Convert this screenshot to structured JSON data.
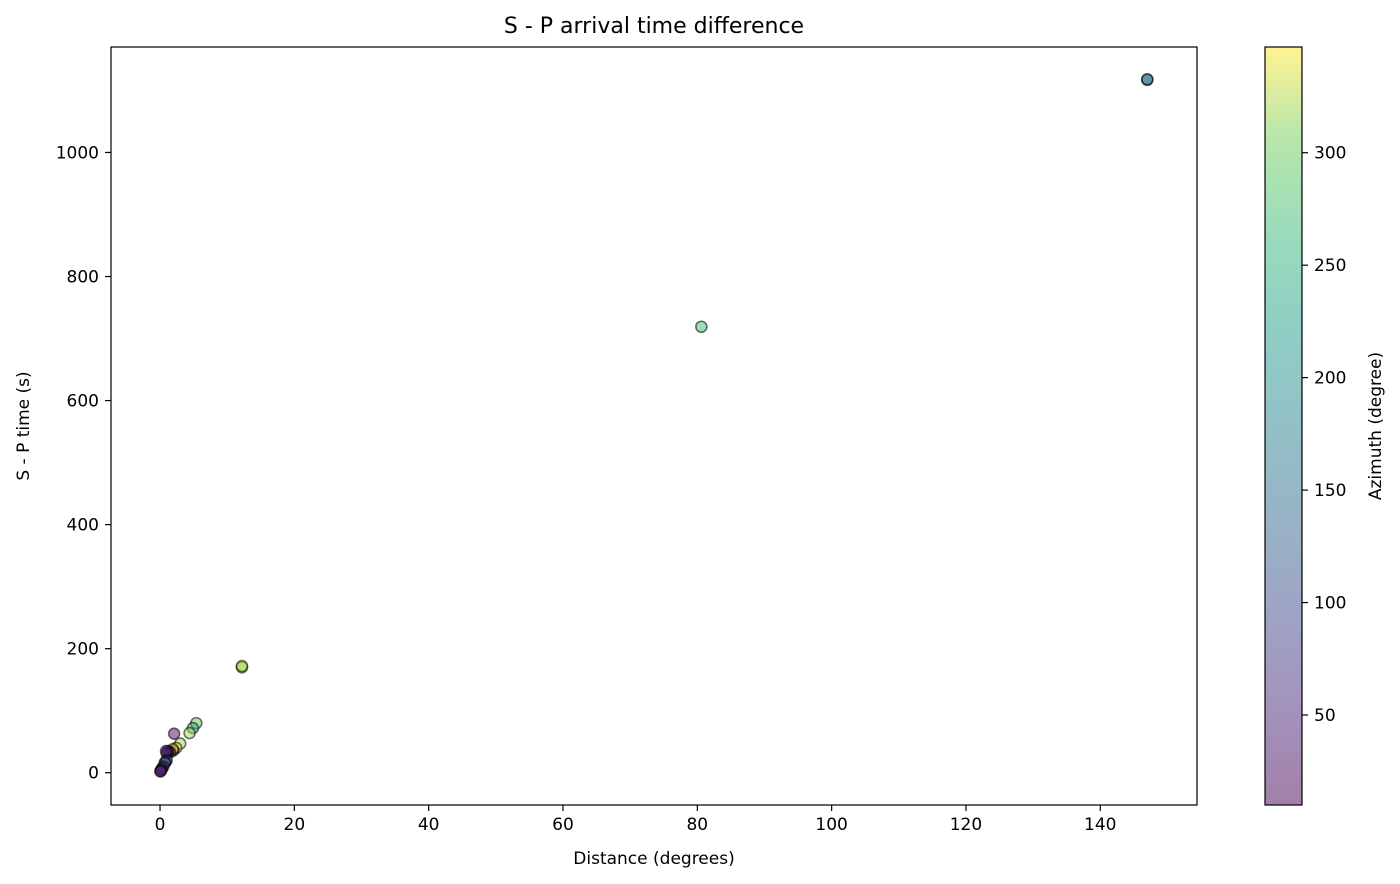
{
  "chart_data": {
    "type": "scatter",
    "title": "S - P arrival time difference",
    "xlabel": "Distance (degrees)",
    "ylabel": "S - P time (s)",
    "xlim": [
      -7.3,
      154.4
    ],
    "ylim": [
      -52,
      1170
    ],
    "xticks": [
      0,
      20,
      40,
      60,
      80,
      100,
      120,
      140
    ],
    "yticks": [
      0,
      200,
      400,
      600,
      800,
      1000
    ],
    "grid": false,
    "legend": "none",
    "colorbar": {
      "label": "Azimuth (degree)",
      "colormap": "viridis",
      "alpha": 0.5,
      "range": [
        10,
        347
      ],
      "ticks": [
        50,
        100,
        150,
        200,
        250,
        300
      ]
    },
    "points": [
      {
        "x": 147.0,
        "y": 1117,
        "c": 180
      },
      {
        "x": 147.0,
        "y": 1118,
        "c": 150
      },
      {
        "x": 80.6,
        "y": 719,
        "c": 270
      },
      {
        "x": 12.2,
        "y": 170,
        "c": 305
      },
      {
        "x": 12.2,
        "y": 172,
        "c": 330
      },
      {
        "x": 5.4,
        "y": 80,
        "c": 300
      },
      {
        "x": 4.9,
        "y": 72,
        "c": 240
      },
      {
        "x": 4.4,
        "y": 64,
        "c": 320
      },
      {
        "x": 3.0,
        "y": 47,
        "c": 320
      },
      {
        "x": 2.4,
        "y": 40,
        "c": 340
      },
      {
        "x": 2.1,
        "y": 63,
        "c": 20
      },
      {
        "x": 2.0,
        "y": 36,
        "c": 15
      },
      {
        "x": 1.9,
        "y": 38,
        "c": 345
      },
      {
        "x": 1.5,
        "y": 33,
        "c": 10
      },
      {
        "x": 1.2,
        "y": 35,
        "c": 10
      },
      {
        "x": 1.0,
        "y": 31,
        "c": 60
      },
      {
        "x": 0.9,
        "y": 35,
        "c": 40
      },
      {
        "x": 1.0,
        "y": 20,
        "c": 90
      },
      {
        "x": 0.8,
        "y": 17,
        "c": 70
      },
      {
        "x": 0.7,
        "y": 16,
        "c": 100
      },
      {
        "x": 0.5,
        "y": 10,
        "c": 80
      },
      {
        "x": 0.3,
        "y": 7,
        "c": 130
      },
      {
        "x": 0.2,
        "y": 5,
        "c": 90
      },
      {
        "x": 0.1,
        "y": 3,
        "c": 50
      },
      {
        "x": 0.05,
        "y": 2,
        "c": 20
      }
    ]
  }
}
